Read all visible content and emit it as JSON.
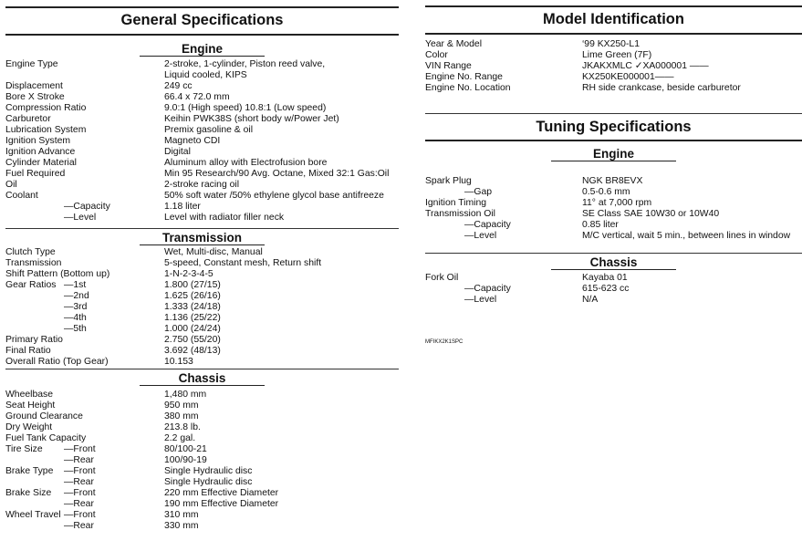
{
  "general": {
    "title": "General Specifications",
    "engine": {
      "heading": "Engine",
      "rows": [
        {
          "label": "Engine Type",
          "value": "2-stroke, 1-cylinder, Piston reed valve,"
        },
        {
          "label": "",
          "value": "Liquid cooled, KIPS"
        },
        {
          "label": "Displacement",
          "value": "249 cc"
        },
        {
          "label": "Bore X Stroke",
          "value": "66.4 x 72.0 mm"
        },
        {
          "label": "Compression Ratio",
          "value": "9.0:1 (High speed) 10.8:1 (Low speed)"
        },
        {
          "label": "Carburetor",
          "value": "Keihin PWK38S (short body w/Power Jet)"
        },
        {
          "label": "Lubrication System",
          "value": "Premix gasoline & oil"
        },
        {
          "label": "Ignition System",
          "value": "Magneto CDI"
        },
        {
          "label": "Ignition Advance",
          "value": "Digital"
        },
        {
          "label": "Cylinder Material",
          "value": "Aluminum alloy with Electrofusion bore"
        },
        {
          "label": "Fuel Required",
          "value": "Min 95 Research/90 Avg. Octane, Mixed 32:1 Gas:Oil"
        },
        {
          "label": "Oil",
          "value": "2-stroke racing oil"
        },
        {
          "label": "Coolant",
          "value": "50% soft water /50% ethylene glycol base antifreeze"
        },
        {
          "label": "",
          "sub": "—Capacity",
          "value": "1.18 liter"
        },
        {
          "label": "",
          "sub": "—Level",
          "value": "Level with radiator filler neck"
        }
      ]
    },
    "transmission": {
      "heading": "Transmission",
      "rows": [
        {
          "label": "Clutch Type",
          "value": "Wet, Multi-disc, Manual"
        },
        {
          "label": "Transmission",
          "value": "5-speed, Constant mesh, Return shift"
        },
        {
          "label": "Shift Pattern (Bottom up)",
          "value": "1-N-2-3-4-5"
        },
        {
          "label": "Gear Ratios",
          "sub": "—1st",
          "value": "1.800 (27/15)"
        },
        {
          "label": "",
          "sub": "—2nd",
          "value": "1.625 (26/16)"
        },
        {
          "label": "",
          "sub": "—3rd",
          "value": "1.333 (24/18)"
        },
        {
          "label": "",
          "sub": "—4th",
          "value": "1.136 (25/22)"
        },
        {
          "label": "",
          "sub": "—5th",
          "value": "1.000 (24/24)"
        },
        {
          "label": "Primary Ratio",
          "value": "2.750 (55/20)"
        },
        {
          "label": "Final Ratio",
          "value": "3.692 (48/13)"
        },
        {
          "label": "Overall Ratio (Top Gear)",
          "value": "10.153"
        }
      ]
    },
    "chassis": {
      "heading": "Chassis",
      "rows": [
        {
          "label": "Wheelbase",
          "value": "1,480 mm"
        },
        {
          "label": "Seat Height",
          "value": "950 mm"
        },
        {
          "label": "Ground Clearance",
          "value": "380 mm"
        },
        {
          "label": "Dry Weight",
          "value": "213.8 lb."
        },
        {
          "label": "Fuel Tank Capacity",
          "value": "2.2 gal."
        },
        {
          "label": "Tire Size",
          "sub": "—Front",
          "value": "80/100-21"
        },
        {
          "label": "",
          "sub": "—Rear",
          "value": "100/90-19"
        },
        {
          "label": "Brake Type",
          "sub": "—Front",
          "value": "Single Hydraulic disc"
        },
        {
          "label": "",
          "sub": "—Rear",
          "value": "Single Hydraulic disc"
        },
        {
          "label": "Brake Size",
          "sub": "—Front",
          "value": "220 mm Effective Diameter"
        },
        {
          "label": "",
          "sub": "—Rear",
          "value": "190 mm Effective Diameter"
        },
        {
          "label": "Wheel Travel",
          "sub": "—Front",
          "value": "310 mm"
        },
        {
          "label": "",
          "sub": "—Rear",
          "value": "330 mm"
        }
      ]
    }
  },
  "model": {
    "title": "Model Identification",
    "rows": [
      {
        "label": "Year & Model",
        "value": "‘99 KX250-L1"
      },
      {
        "label": "Color",
        "value": "Lime Green (7F)"
      },
      {
        "label": "VIN Range",
        "value": "JKAKXMLC ✓XA000001 ——"
      },
      {
        "label": "Engine No. Range",
        "value": "KX250KE000001——"
      },
      {
        "label": "Engine No. Location",
        "value": "RH side crankcase, beside carburetor"
      }
    ]
  },
  "tuning": {
    "title": "Tuning Specifications",
    "engine": {
      "heading": "Engine",
      "rows": [
        {
          "label": "Spark Plug",
          "value": "NGK BR8EVX"
        },
        {
          "label": "",
          "sub": "—Gap",
          "value": "0.5-0.6 mm"
        },
        {
          "label": "Ignition Timing",
          "value": "11° at 7,000 rpm"
        },
        {
          "label": "Transmission Oil",
          "value": "SE Class SAE 10W30 or 10W40"
        },
        {
          "label": "",
          "sub": "—Capacity",
          "value": "0.85 liter"
        },
        {
          "label": "",
          "sub": "—Level",
          "value": "M/C vertical, wait 5 min., between lines in window"
        }
      ]
    },
    "chassis": {
      "heading": "Chassis",
      "rows": [
        {
          "label": "Fork Oil",
          "value": "Kayaba 01"
        },
        {
          "label": "",
          "sub": "—Capacity",
          "value": "615-623 cc"
        },
        {
          "label": "",
          "sub": "—Level",
          "value": "N/A"
        }
      ]
    }
  },
  "footer_code": "MFIKX2K1SPC"
}
